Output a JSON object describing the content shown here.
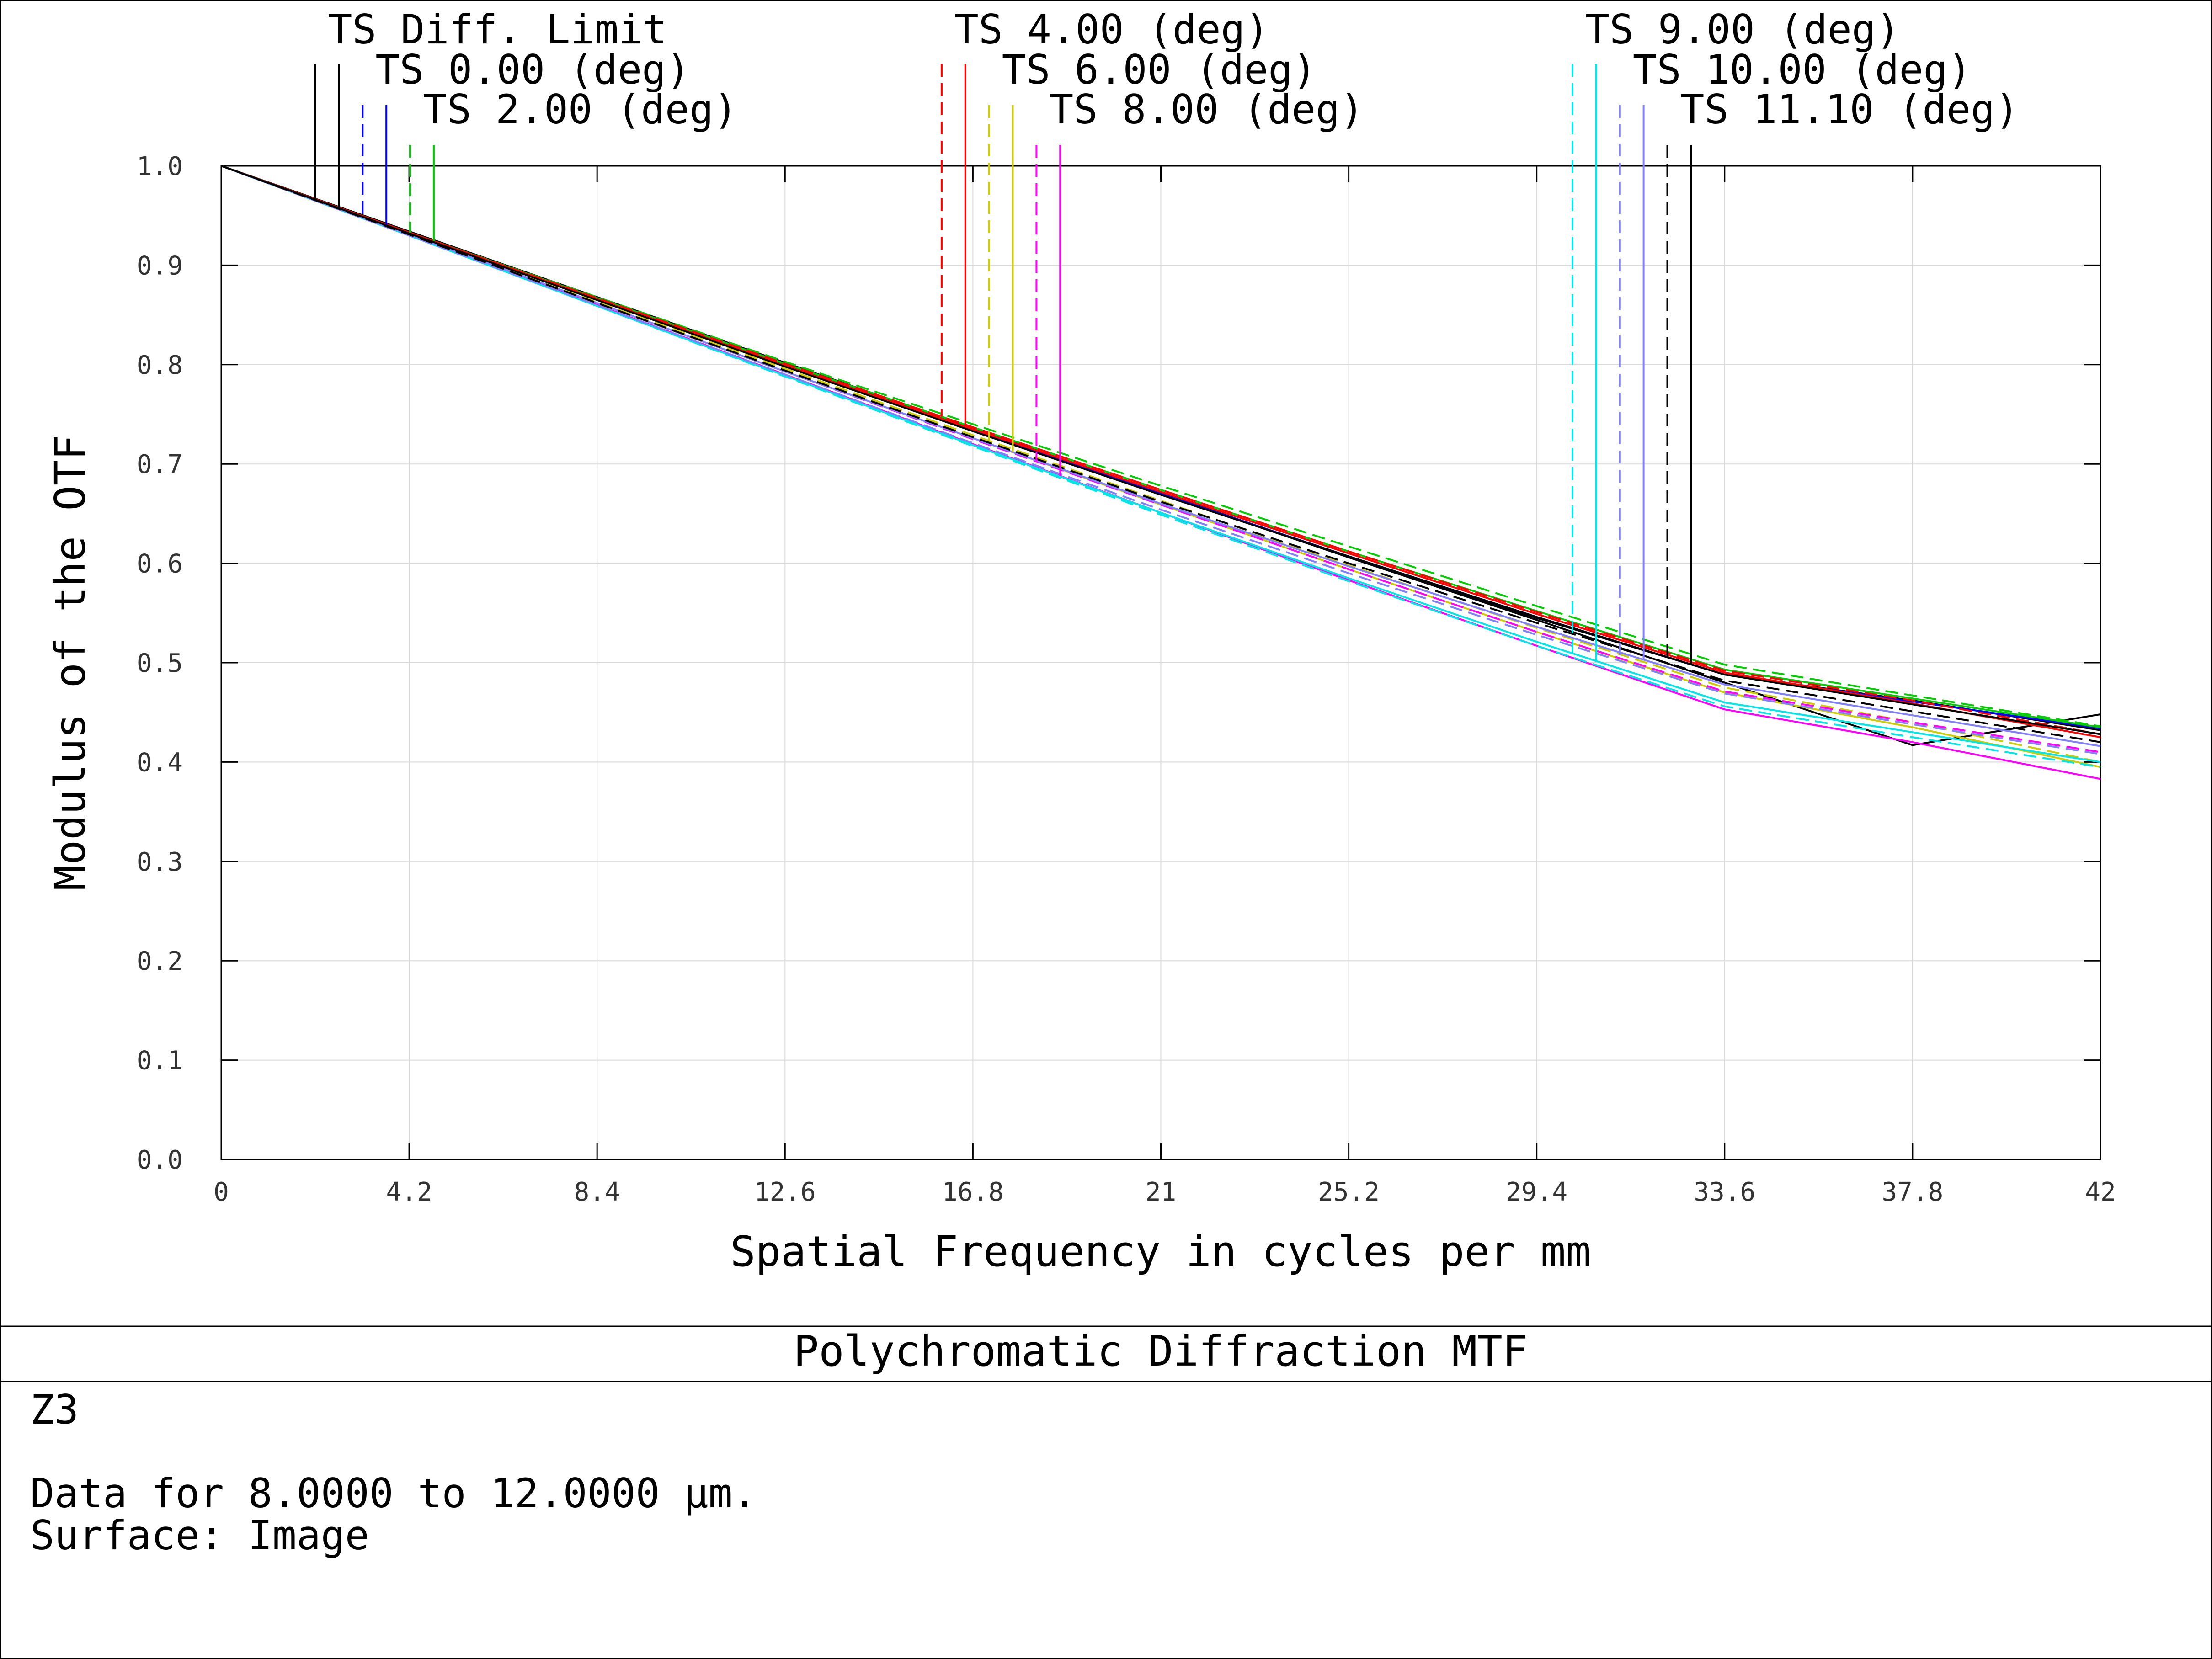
{
  "chart_data": {
    "type": "line",
    "title": "Polychromatic Diffraction MTF",
    "xlabel": "Spatial Frequency in cycles per mm",
    "ylabel": "Modulus of the OTF",
    "xlim": [
      0,
      42
    ],
    "ylim": [
      0,
      1.0
    ],
    "grid": true,
    "xticks": [
      "0",
      "4.2",
      "8.4",
      "12.6",
      "16.8",
      "21",
      "25.2",
      "29.4",
      "33.6",
      "37.8",
      "42"
    ],
    "yticks": [
      "0.0",
      "0.1",
      "0.2",
      "0.3",
      "0.4",
      "0.5",
      "0.6",
      "0.7",
      "0.8",
      "0.9",
      "1.0"
    ],
    "legend_placement": "top",
    "x": [
      0,
      4.2,
      8.4,
      12.6,
      16.8,
      21,
      25.2,
      29.4,
      33.6,
      37.8,
      42
    ],
    "series": [
      {
        "name": "TS Diff. Limit",
        "color": "#000000",
        "dash": "solid",
        "marker_x": 2.1,
        "values": [
          1.0,
          0.934,
          0.868,
          0.802,
          0.736,
          0.67,
          0.606,
          0.543,
          0.48,
          0.417,
          0.448
        ]
      },
      {
        "color": "#000000",
        "dash": "solid",
        "marker_x": 2.63,
        "values": [
          1.0,
          0.934,
          0.867,
          0.8,
          0.735,
          0.671,
          0.606,
          0.545,
          0.488,
          0.462,
          0.432
        ]
      },
      {
        "name": "TS 0.00 (deg)",
        "color": "#0000ff",
        "dash": "dashed",
        "marker_x": 3.16,
        "values": [
          1.0,
          0.933,
          0.866,
          0.799,
          0.734,
          0.67,
          0.607,
          0.546,
          0.488,
          0.461,
          0.434
        ]
      },
      {
        "color": "#0000ff",
        "dash": "solid",
        "marker_x": 3.69,
        "values": [
          1.0,
          0.933,
          0.866,
          0.799,
          0.734,
          0.67,
          0.607,
          0.546,
          0.488,
          0.461,
          0.434
        ]
      },
      {
        "name": "TS 2.00 (deg)",
        "color": "#00cc00",
        "dash": "dashed",
        "marker_x": 4.22,
        "values": [
          1.0,
          0.933,
          0.868,
          0.803,
          0.74,
          0.678,
          0.617,
          0.557,
          0.498,
          0.467,
          0.436
        ]
      },
      {
        "color": "#00cc00",
        "dash": "solid",
        "marker_x": 4.75,
        "values": [
          1.0,
          0.933,
          0.867,
          0.801,
          0.737,
          0.674,
          0.612,
          0.552,
          0.493,
          0.464,
          0.435
        ]
      },
      {
        "name": "TS 4.00 (deg)",
        "color": "#ff0000",
        "dash": "dashed",
        "marker_x": 16.1,
        "values": [
          1.0,
          0.933,
          0.867,
          0.801,
          0.737,
          0.674,
          0.612,
          0.551,
          0.492,
          0.462,
          0.428
        ]
      },
      {
        "color": "#ff0000",
        "dash": "solid",
        "marker_x": 16.63,
        "values": [
          1.0,
          0.933,
          0.866,
          0.799,
          0.735,
          0.672,
          0.61,
          0.549,
          0.49,
          0.459,
          0.425
        ]
      },
      {
        "name": "TS 6.00 (deg)",
        "color": "#cccc00",
        "dash": "dashed",
        "marker_x": 17.16,
        "values": [
          1.0,
          0.932,
          0.864,
          0.796,
          0.729,
          0.663,
          0.598,
          0.535,
          0.475,
          0.44,
          0.4
        ]
      },
      {
        "color": "#cccc00",
        "dash": "solid",
        "marker_x": 17.69,
        "values": [
          1.0,
          0.931,
          0.862,
          0.793,
          0.726,
          0.659,
          0.594,
          0.531,
          0.47,
          0.435,
          0.395
        ]
      },
      {
        "name": "TS 8.00 (deg)",
        "color": "#ff00ff",
        "dash": "dashed",
        "marker_x": 18.22,
        "values": [
          1.0,
          0.931,
          0.862,
          0.793,
          0.725,
          0.659,
          0.594,
          0.531,
          0.471,
          0.44,
          0.41
        ]
      },
      {
        "color": "#ff00ff",
        "dash": "solid",
        "marker_x": 18.75,
        "values": [
          1.0,
          0.93,
          0.86,
          0.79,
          0.72,
          0.651,
          0.583,
          0.517,
          0.453,
          0.42,
          0.383
        ]
      },
      {
        "name": "TS 9.00 (deg)",
        "color": "#00e5e5",
        "dash": "dashed",
        "marker_x": 30.2,
        "values": [
          1.0,
          0.93,
          0.859,
          0.788,
          0.718,
          0.649,
          0.582,
          0.517,
          0.456,
          0.425,
          0.395
        ]
      },
      {
        "color": "#00e5e5",
        "dash": "solid",
        "marker_x": 30.73,
        "values": [
          1.0,
          0.93,
          0.859,
          0.789,
          0.719,
          0.651,
          0.585,
          0.521,
          0.46,
          0.43,
          0.4
        ]
      },
      {
        "name": "TS 10.00 (deg)",
        "color": "#8080ff",
        "dash": "dashed",
        "marker_x": 31.26,
        "values": [
          1.0,
          0.93,
          0.86,
          0.79,
          0.721,
          0.654,
          0.59,
          0.528,
          0.469,
          0.438,
          0.408
        ]
      },
      {
        "color": "#8080ff",
        "dash": "solid",
        "marker_x": 31.79,
        "values": [
          1.0,
          0.931,
          0.862,
          0.793,
          0.726,
          0.66,
          0.597,
          0.536,
          0.478,
          0.447,
          0.416
        ]
      },
      {
        "name": "TS 11.10 (deg)",
        "color": "#000000",
        "dash": "dashed",
        "marker_x": 32.32,
        "values": [
          1.0,
          0.931,
          0.862,
          0.794,
          0.727,
          0.662,
          0.6,
          0.54,
          0.482,
          0.451,
          0.42
        ]
      },
      {
        "color": "#000000",
        "dash": "solid",
        "marker_x": 32.85,
        "values": [
          1.0,
          0.932,
          0.865,
          0.798,
          0.733,
          0.669,
          0.607,
          0.546,
          0.488,
          0.458,
          0.428
        ]
      }
    ]
  },
  "info": {
    "config": "Z3",
    "data_range": "Data for 8.0000 to 12.0000 µm.",
    "surface": "Surface: Image"
  }
}
